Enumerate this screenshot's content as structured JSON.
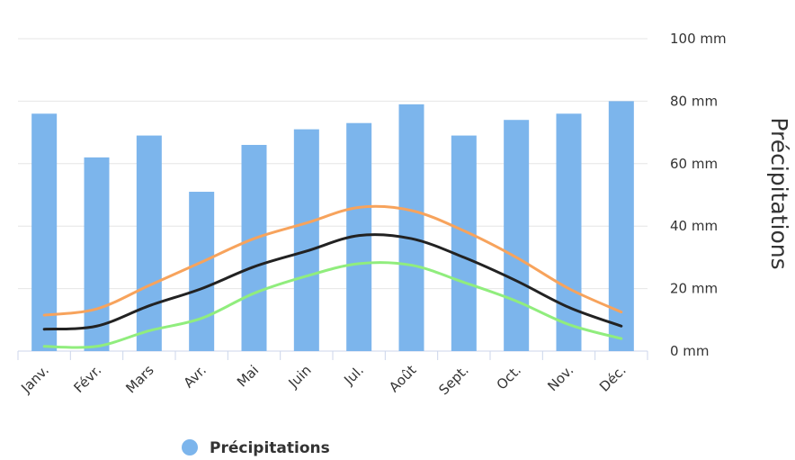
{
  "chart_data": {
    "type": "bar",
    "categories": [
      "Janv.",
      "Févr.",
      "Mars",
      "Avr.",
      "Mai",
      "Juin",
      "Jul.",
      "Août",
      "Sept.",
      "Oct.",
      "Nov.",
      "Déc."
    ],
    "series": [
      {
        "name": "Précipitations",
        "type": "bar",
        "color": "#7cb5ec",
        "values": [
          76,
          62,
          69,
          51,
          66,
          71,
          73,
          79,
          69,
          74,
          76,
          80
        ]
      },
      {
        "type": "line",
        "color": "#f7a35c",
        "values": [
          11.5,
          13.5,
          21,
          28.5,
          36,
          41,
          46,
          45,
          38.5,
          30,
          20,
          12.5
        ]
      },
      {
        "type": "line",
        "color": "#222222",
        "values": [
          7,
          8,
          14.5,
          20,
          27,
          32,
          37,
          36,
          30,
          22.5,
          14,
          8
        ]
      },
      {
        "type": "line",
        "color": "#90ed7d",
        "values": [
          1.5,
          1.5,
          6.5,
          10.5,
          18.5,
          24,
          28,
          27.5,
          22,
          16,
          8.5,
          4
        ]
      }
    ],
    "y_ticks": [
      "0 mm",
      "20 mm",
      "40 mm",
      "60 mm",
      "80 mm",
      "100 mm"
    ],
    "ylabel": "Précipitations",
    "ylim": [
      0,
      100
    ],
    "grid": true,
    "y_axis_side": "right",
    "legend": {
      "position": "bottom-left",
      "items": [
        "Précipitations"
      ]
    }
  }
}
